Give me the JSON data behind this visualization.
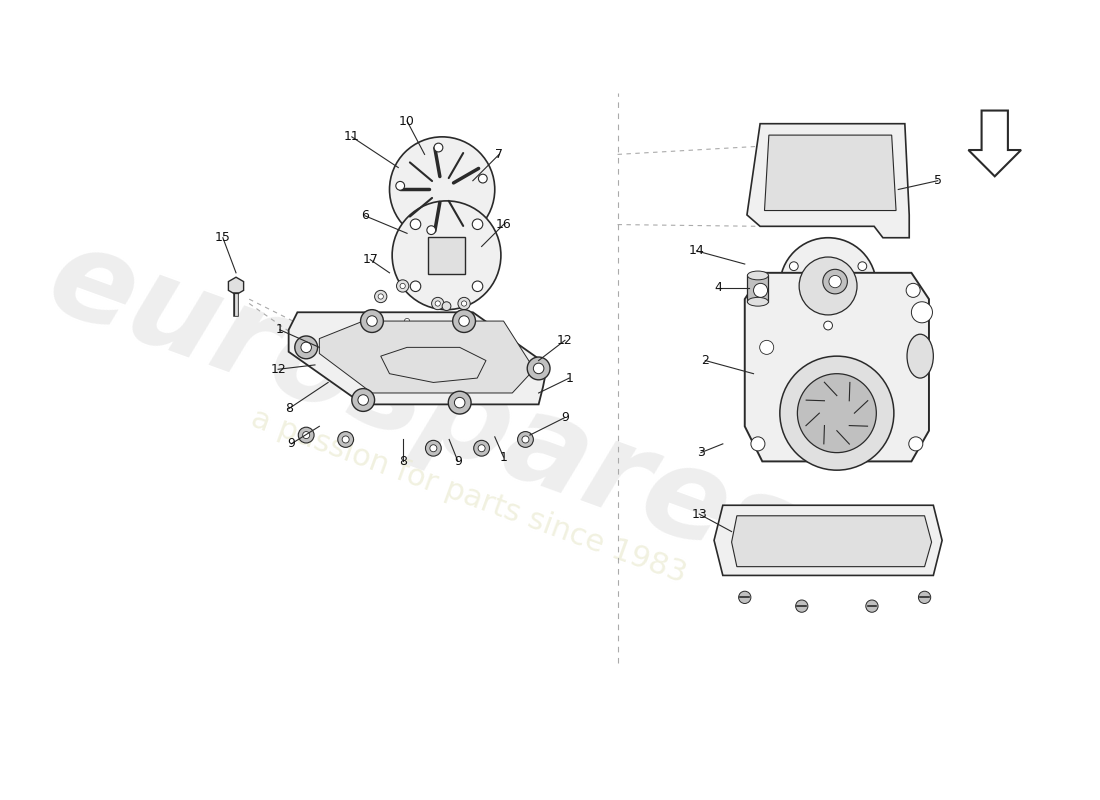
{
  "bg_color": "#ffffff",
  "line_color": "#2a2a2a",
  "part_fill": "#f0f0f0",
  "part_fill2": "#e0e0e0",
  "dark_fill": "#c0c0c0",
  "dashed_color": "#aaaaaa",
  "label_color": "#111111",
  "label_fontsize": 9,
  "wm_color1": "#dddddd",
  "wm_color2": "#e8e8cc",
  "wm_alpha1": 0.5,
  "wm_alpha2": 0.6
}
